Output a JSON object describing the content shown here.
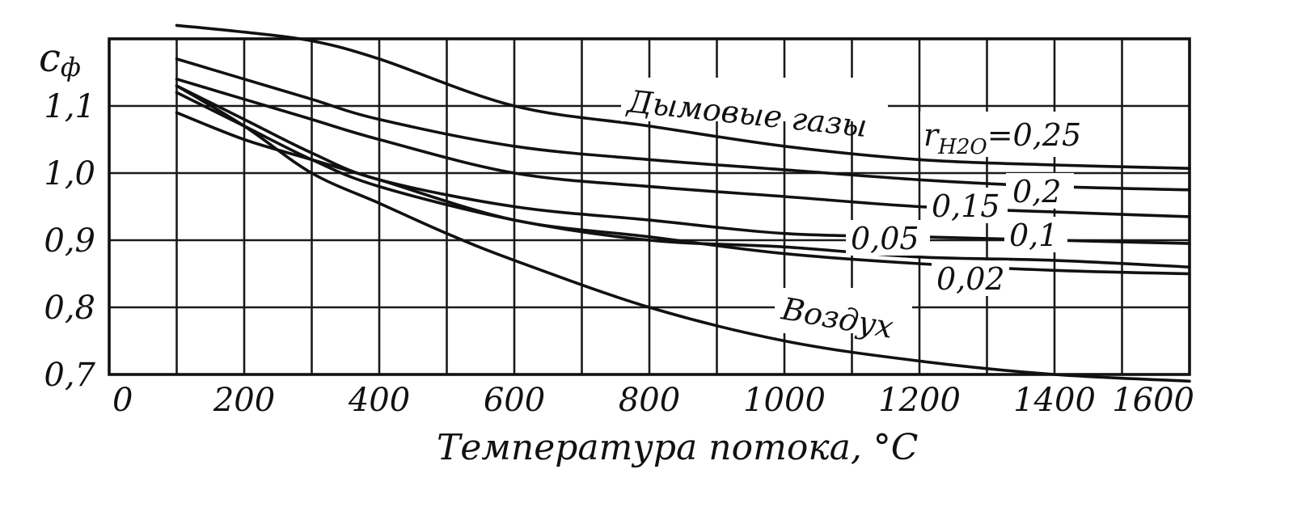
{
  "chart_data": {
    "type": "line",
    "title": "",
    "xlabel": "Температура потока, °C",
    "ylabel": "cф",
    "ylabel_main": "c",
    "ylabel_sub": "ф",
    "xlim": [
      0,
      1600
    ],
    "ylim": [
      0.7,
      1.2
    ],
    "x_ticks": [
      0,
      200,
      400,
      600,
      800,
      1000,
      1200,
      1400,
      1600
    ],
    "x_tick_labels": [
      "0",
      "200",
      "400",
      "600",
      "800",
      "1000",
      "1200",
      "1400",
      "1600"
    ],
    "y_ticks": [
      0.7,
      0.8,
      0.9,
      1.0,
      1.1
    ],
    "y_tick_labels": [
      "0,7",
      "0,8",
      "0,9",
      "1,0",
      "1,1"
    ],
    "grid": true,
    "legend": "none",
    "annotations": {
      "flue_gas": "Дымовые газы",
      "r_symbol": "r",
      "r_subscript": "H2O",
      "r_value": "=0,25",
      "v_02": "0,2",
      "v_015": "0,15",
      "v_01": "0,1",
      "v_005": "0,05",
      "v_002": "0,02",
      "air": "Воздух"
    },
    "series": [
      {
        "x": [
          100,
          200,
          300,
          400,
          600,
          800,
          1000,
          1200,
          1400,
          1600
        ],
        "y": [
          1.22,
          1.21,
          1.197,
          1.17,
          1.1,
          1.07,
          1.04,
          1.02,
          1.012,
          1.007
        ]
      },
      {
        "x": [
          100,
          200,
          300,
          400,
          600,
          800,
          1000,
          1200,
          1400,
          1600
        ],
        "y": [
          1.17,
          1.14,
          1.11,
          1.08,
          1.04,
          1.02,
          1.005,
          0.99,
          0.98,
          0.975
        ]
      },
      {
        "x": [
          100,
          200,
          300,
          400,
          600,
          800,
          1000,
          1200,
          1400,
          1600
        ],
        "y": [
          1.14,
          1.11,
          1.08,
          1.05,
          1.0,
          0.98,
          0.965,
          0.95,
          0.942,
          0.935
        ]
      },
      {
        "x": [
          100,
          200,
          300,
          400,
          600,
          800,
          1000,
          1200,
          1400,
          1600
        ],
        "y": [
          1.13,
          1.08,
          1.03,
          0.99,
          0.95,
          0.93,
          0.91,
          0.905,
          0.9,
          0.895
        ]
      },
      {
        "x": [
          100,
          200,
          300,
          400,
          600,
          800,
          1000,
          1200,
          1400,
          1600
        ],
        "y": [
          1.12,
          1.07,
          1.02,
          0.98,
          0.93,
          0.9,
          0.89,
          0.875,
          0.87,
          0.86
        ]
      },
      {
        "x": [
          100,
          200,
          300,
          400,
          600,
          800,
          1000,
          1200,
          1400,
          1600
        ],
        "y": [
          1.09,
          1.05,
          1.02,
          0.99,
          0.93,
          0.905,
          0.88,
          0.865,
          0.855,
          0.85
        ]
      },
      {
        "x": [
          100,
          200,
          300,
          400,
          500,
          600,
          800,
          1000,
          1200,
          1400,
          1600
        ],
        "y": [
          1.13,
          1.07,
          1.0,
          0.955,
          0.91,
          0.87,
          0.8,
          0.75,
          0.72,
          0.7,
          0.69
        ]
      }
    ]
  }
}
